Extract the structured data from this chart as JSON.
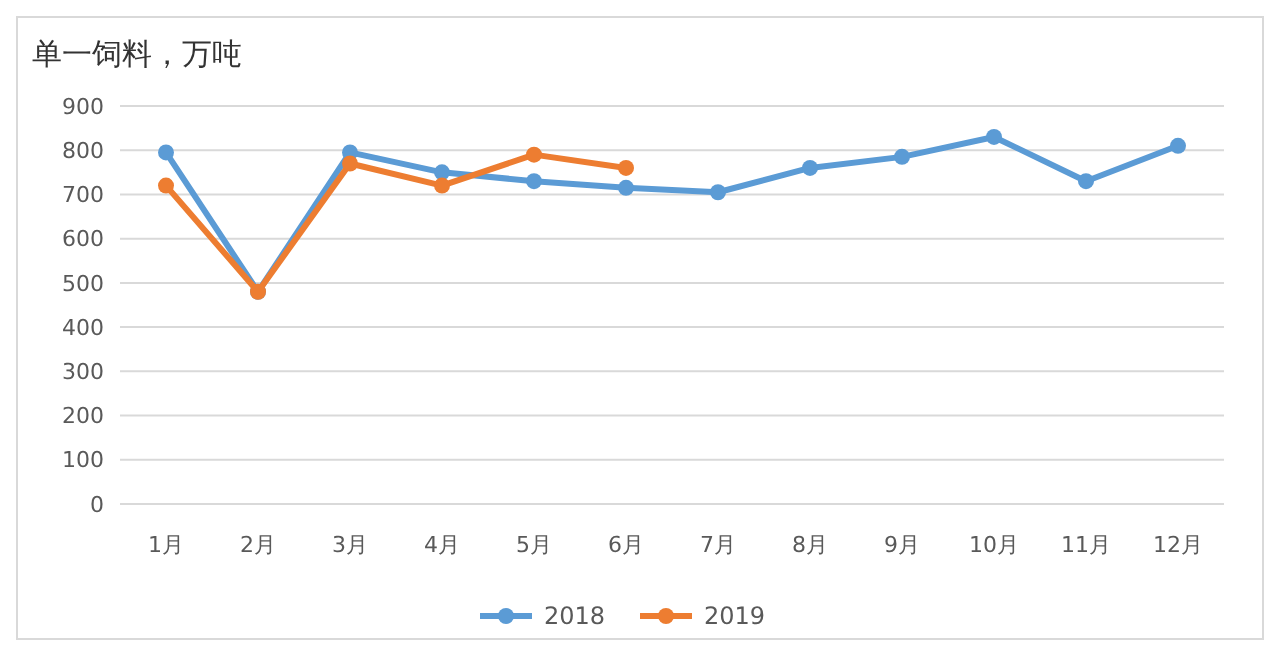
{
  "chart_data": {
    "type": "line",
    "title": "单一饲料，万吨",
    "categories": [
      "1月",
      "2月",
      "3月",
      "4月",
      "5月",
      "6月",
      "7月",
      "8月",
      "9月",
      "10月",
      "11月",
      "12月"
    ],
    "series": [
      {
        "name": "2018",
        "color": "#5b9bd5",
        "values": [
          795,
          480,
          795,
          750,
          730,
          715,
          705,
          760,
          785,
          830,
          730,
          810
        ]
      },
      {
        "name": "2019",
        "color": "#ed7d31",
        "values": [
          720,
          480,
          770,
          720,
          790,
          760,
          null,
          null,
          null,
          null,
          null,
          null
        ]
      }
    ],
    "ylim": [
      0,
      900
    ],
    "yticks": [
      0,
      100,
      200,
      300,
      400,
      500,
      600,
      700,
      800,
      900
    ],
    "grid": "y",
    "legend": "bottom",
    "marker": "circle"
  }
}
